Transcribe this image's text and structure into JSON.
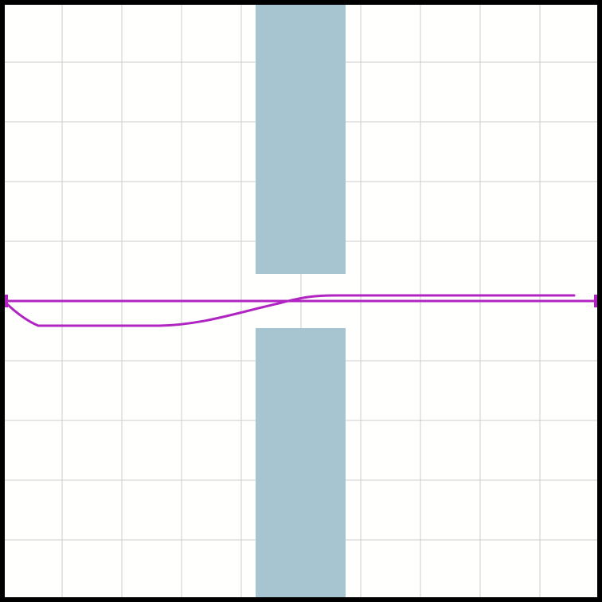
{
  "scene": {
    "canvas_background": "#fffffd",
    "border_color": "#000000",
    "grid": {
      "visible": true,
      "color": "#c9cfcc",
      "divisions": 10
    },
    "walls": {
      "color": "#a6c5d0",
      "count": 2
    },
    "path": {
      "color": "#b025c2",
      "start_marker": "square",
      "goal_marker": "square"
    }
  }
}
